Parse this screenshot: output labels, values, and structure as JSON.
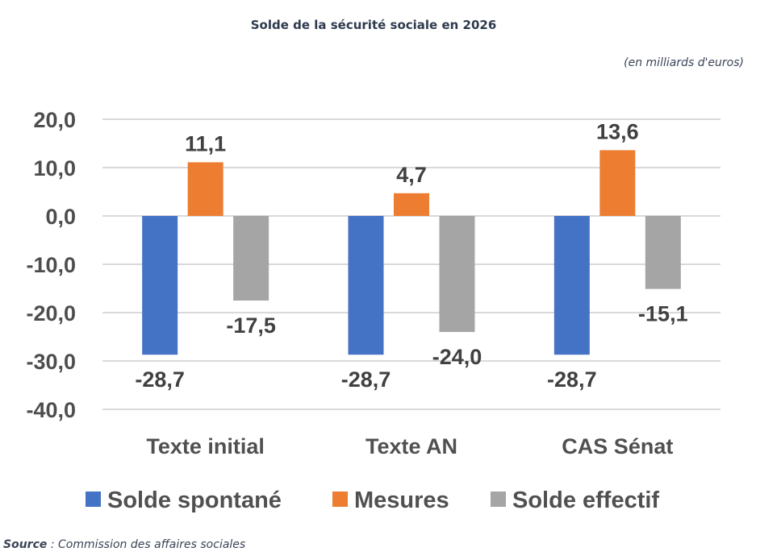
{
  "chart_data": {
    "type": "bar",
    "title": "Solde de la sécurité sociale en 2026",
    "unit_note": "(en milliards d'euros)",
    "categories": [
      "Texte initial",
      "Texte AN",
      "CAS Sénat"
    ],
    "series": [
      {
        "name": "Solde spontané",
        "color": "#4472c4",
        "values": [
          -28.7,
          -28.7,
          -28.7
        ],
        "labels": [
          "-28,7",
          "-28,7",
          "-28,7"
        ]
      },
      {
        "name": "Mesures",
        "color": "#ed7d31",
        "values": [
          11.1,
          4.7,
          13.6
        ],
        "labels": [
          "11,1",
          "4,7",
          "13,6"
        ]
      },
      {
        "name": "Solde effectif",
        "color": "#a5a5a5",
        "values": [
          -17.5,
          -24.0,
          -15.1
        ],
        "labels": [
          "-17,5",
          "-24,0",
          "-15,1"
        ]
      }
    ],
    "ylim": [
      -40,
      20
    ],
    "yticks": [
      20,
      10,
      0,
      -10,
      -20,
      -30,
      -40
    ],
    "ytick_labels": [
      "20,0",
      "10,0",
      "0,0",
      "-10,0",
      "-20,0",
      "-30,0",
      "-40,0"
    ],
    "grid": true,
    "legend": "bottom",
    "xlabel": "",
    "ylabel": ""
  },
  "source": {
    "label": "Source",
    "separator": " : ",
    "text": "Commission des affaires sociales"
  }
}
